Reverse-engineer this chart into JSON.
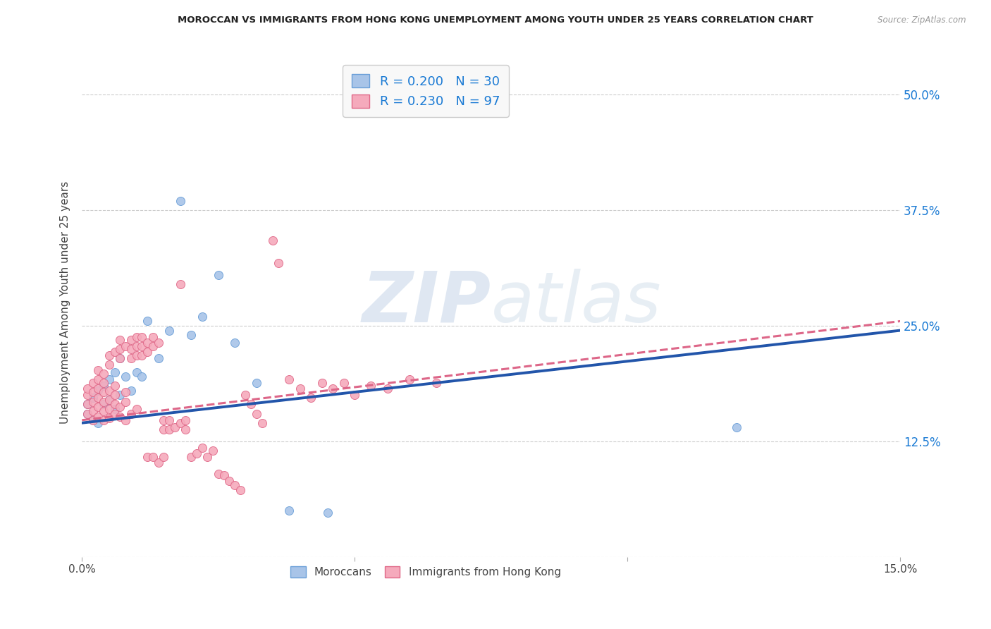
{
  "title": "MOROCCAN VS IMMIGRANTS FROM HONG KONG UNEMPLOYMENT AMONG YOUTH UNDER 25 YEARS CORRELATION CHART",
  "source": "Source: ZipAtlas.com",
  "ylabel": "Unemployment Among Youth under 25 years",
  "xmin": 0.0,
  "xmax": 0.15,
  "ymin": 0.0,
  "ymax": 0.55,
  "yticks": [
    0.0,
    0.125,
    0.25,
    0.375,
    0.5
  ],
  "ytick_labels": [
    "",
    "12.5%",
    "25.0%",
    "37.5%",
    "50.0%"
  ],
  "xticks": [
    0.0,
    0.05,
    0.1,
    0.15
  ],
  "xtick_labels": [
    "0.0%",
    "",
    "",
    "15.0%"
  ],
  "watermark_zip": "ZIP",
  "watermark_atlas": "atlas",
  "series": [
    {
      "name": "Moroccans",
      "color": "#a8c4e8",
      "edge_color": "#6a9fd8",
      "R": 0.2,
      "N": 30,
      "line_color": "#2255aa",
      "line_style": "solid",
      "trend_x0": 0.0,
      "trend_y0": 0.145,
      "trend_x1": 0.15,
      "trend_y1": 0.245,
      "points_x": [
        0.001,
        0.001,
        0.002,
        0.002,
        0.003,
        0.003,
        0.004,
        0.004,
        0.005,
        0.005,
        0.006,
        0.006,
        0.007,
        0.007,
        0.008,
        0.009,
        0.01,
        0.011,
        0.012,
        0.014,
        0.016,
        0.018,
        0.02,
        0.022,
        0.025,
        0.028,
        0.032,
        0.038,
        0.045,
        0.12
      ],
      "points_y": [
        0.155,
        0.165,
        0.148,
        0.172,
        0.145,
        0.18,
        0.165,
        0.185,
        0.17,
        0.192,
        0.16,
        0.2,
        0.175,
        0.215,
        0.195,
        0.18,
        0.2,
        0.195,
        0.255,
        0.215,
        0.245,
        0.385,
        0.24,
        0.26,
        0.305,
        0.232,
        0.188,
        0.05,
        0.048,
        0.14
      ]
    },
    {
      "name": "Immigrants from Hong Kong",
      "color": "#f5aabc",
      "edge_color": "#e06888",
      "R": 0.23,
      "N": 97,
      "line_color": "#dd6688",
      "line_style": "dashed",
      "trend_x0": 0.0,
      "trend_y0": 0.148,
      "trend_x1": 0.15,
      "trend_y1": 0.255,
      "points_x": [
        0.001,
        0.001,
        0.001,
        0.001,
        0.002,
        0.002,
        0.002,
        0.002,
        0.002,
        0.003,
        0.003,
        0.003,
        0.003,
        0.003,
        0.003,
        0.004,
        0.004,
        0.004,
        0.004,
        0.004,
        0.004,
        0.005,
        0.005,
        0.005,
        0.005,
        0.005,
        0.005,
        0.006,
        0.006,
        0.006,
        0.006,
        0.006,
        0.007,
        0.007,
        0.007,
        0.007,
        0.007,
        0.008,
        0.008,
        0.008,
        0.008,
        0.009,
        0.009,
        0.009,
        0.009,
        0.01,
        0.01,
        0.01,
        0.01,
        0.011,
        0.011,
        0.011,
        0.012,
        0.012,
        0.012,
        0.013,
        0.013,
        0.013,
        0.014,
        0.014,
        0.015,
        0.015,
        0.015,
        0.016,
        0.016,
        0.017,
        0.018,
        0.018,
        0.019,
        0.019,
        0.02,
        0.021,
        0.022,
        0.023,
        0.024,
        0.025,
        0.026,
        0.027,
        0.028,
        0.029,
        0.03,
        0.031,
        0.032,
        0.033,
        0.035,
        0.036,
        0.038,
        0.04,
        0.042,
        0.044,
        0.046,
        0.048,
        0.05,
        0.053,
        0.056,
        0.06,
        0.065
      ],
      "points_y": [
        0.155,
        0.165,
        0.175,
        0.182,
        0.148,
        0.158,
        0.168,
        0.178,
        0.188,
        0.152,
        0.162,
        0.172,
        0.182,
        0.192,
        0.202,
        0.148,
        0.158,
        0.168,
        0.178,
        0.188,
        0.198,
        0.15,
        0.16,
        0.17,
        0.18,
        0.208,
        0.218,
        0.155,
        0.165,
        0.175,
        0.185,
        0.222,
        0.152,
        0.162,
        0.215,
        0.225,
        0.235,
        0.148,
        0.168,
        0.178,
        0.228,
        0.155,
        0.215,
        0.225,
        0.235,
        0.16,
        0.218,
        0.228,
        0.238,
        0.218,
        0.228,
        0.238,
        0.222,
        0.232,
        0.108,
        0.228,
        0.238,
        0.108,
        0.232,
        0.102,
        0.138,
        0.148,
        0.108,
        0.138,
        0.148,
        0.14,
        0.145,
        0.295,
        0.138,
        0.148,
        0.108,
        0.112,
        0.118,
        0.108,
        0.115,
        0.09,
        0.088,
        0.082,
        0.078,
        0.072,
        0.175,
        0.165,
        0.155,
        0.145,
        0.342,
        0.318,
        0.192,
        0.182,
        0.172,
        0.188,
        0.182,
        0.188,
        0.175,
        0.185,
        0.182,
        0.192,
        0.188
      ]
    }
  ],
  "legend_text_color": "#1a7ad4",
  "background_color": "#ffffff",
  "grid_color": "#cccccc"
}
